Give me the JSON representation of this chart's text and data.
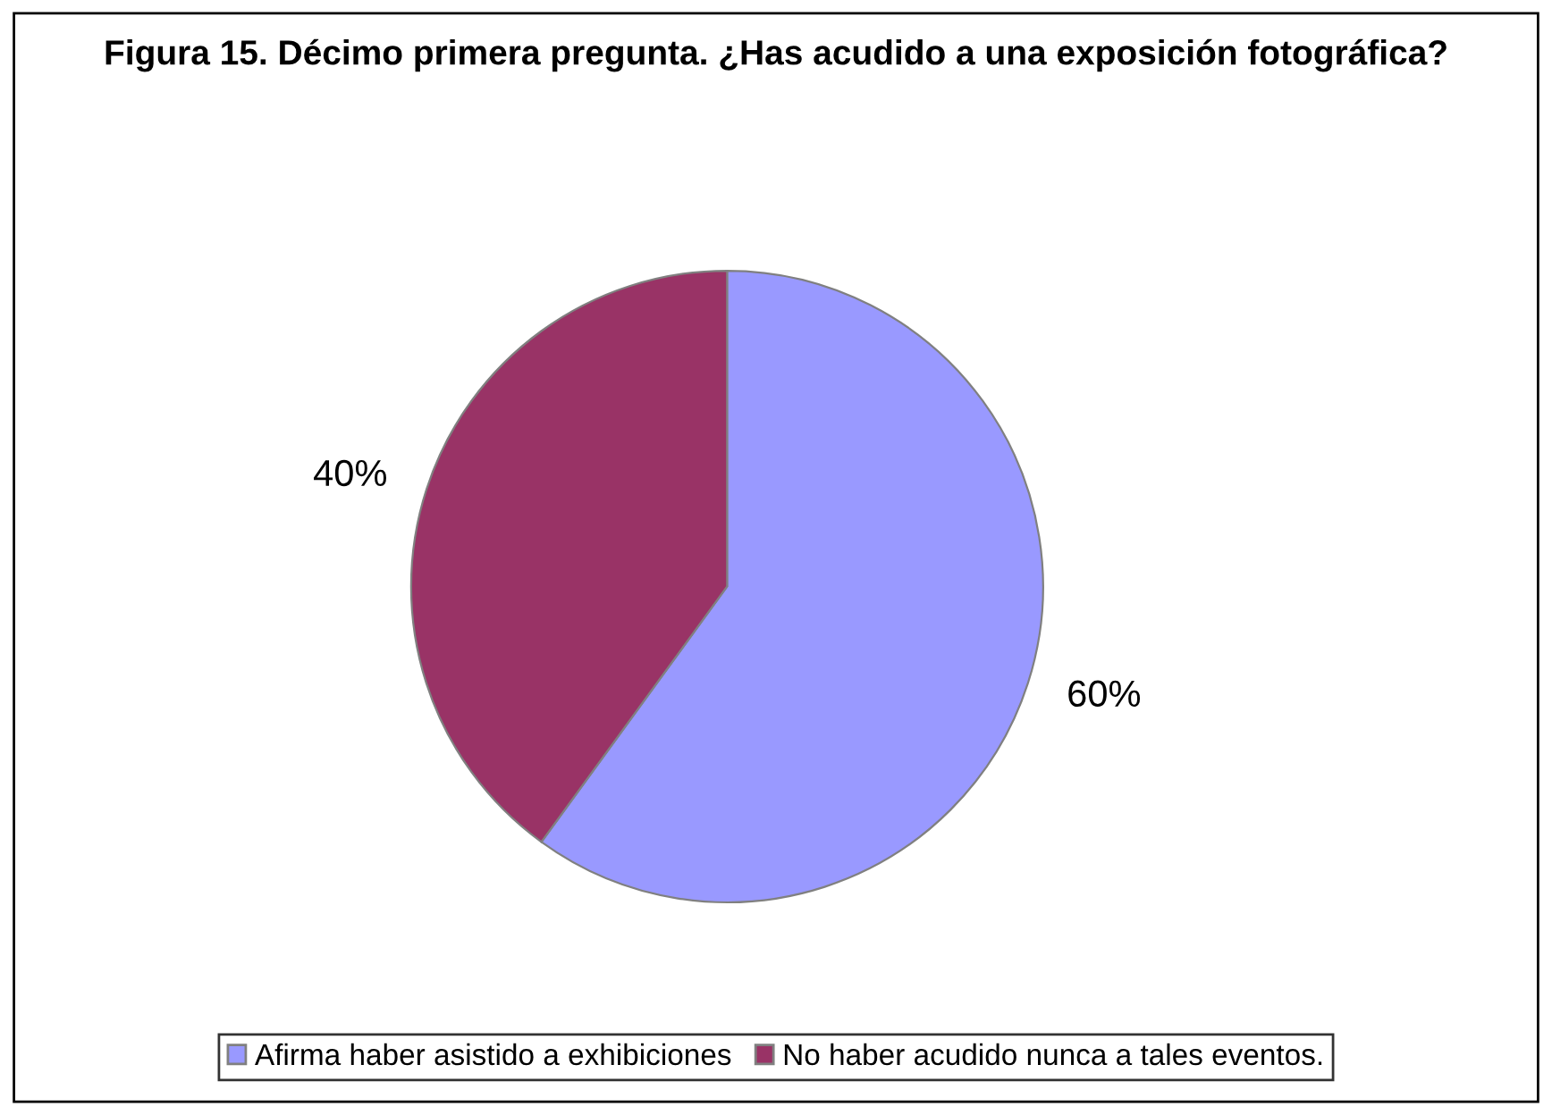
{
  "chart_data": {
    "type": "pie",
    "title": "Figura 15. Décimo primera pregunta. ¿Has acudido a una exposición fotográfica?",
    "categories": [
      "Afirma haber asistido a exhibiciones",
      "No haber acudido nunca a tales eventos."
    ],
    "values": [
      60,
      40
    ],
    "colors": [
      "#9999ff",
      "#993366"
    ],
    "value_labels": [
      "60%",
      "40%"
    ],
    "legend": "bottom"
  }
}
